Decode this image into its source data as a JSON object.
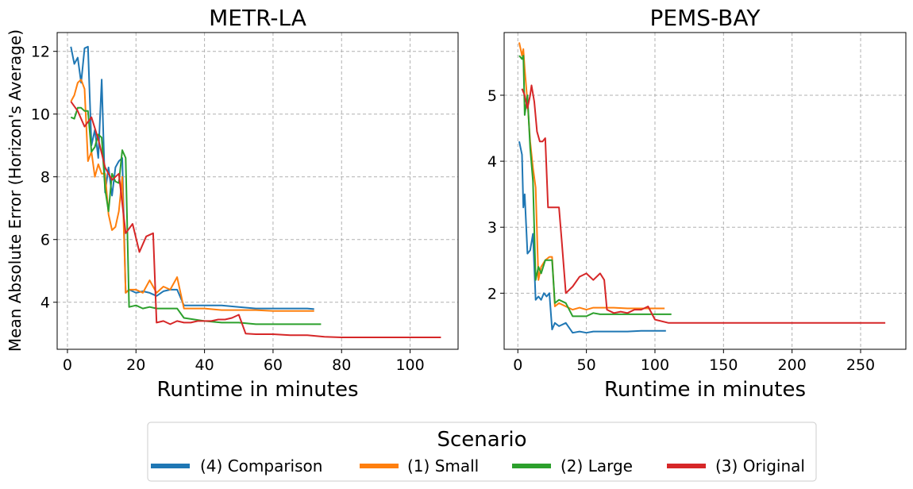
{
  "figure": {
    "ylabel": "Mean Absolute Error (Horizon's Average)"
  },
  "legend": {
    "title": "Scenario",
    "entries": [
      {
        "label": "(4) Comparison",
        "color": "#1f77b4"
      },
      {
        "label": "(1) Small",
        "color": "#ff7f0e"
      },
      {
        "label": "(2) Large",
        "color": "#2ca02c"
      },
      {
        "label": "(3) Original",
        "color": "#d62728"
      }
    ],
    "placement": "bottom-center"
  },
  "chart_data": [
    {
      "type": "line",
      "title": "METR-LA",
      "xlabel": "Runtime in minutes",
      "ylabel": "Mean Absolute Error (Horizon's Average)",
      "xlim": [
        -3,
        114
      ],
      "ylim": [
        2.5,
        12.6
      ],
      "xticks": [
        0,
        20,
        40,
        60,
        80,
        100
      ],
      "yticks": [
        4,
        6,
        8,
        10,
        12
      ],
      "grid": true,
      "series": [
        {
          "name": "(4) Comparison",
          "color": "#1f77b4",
          "x": [
            1,
            2,
            3,
            4,
            5,
            6,
            7,
            8,
            9,
            10,
            11,
            12,
            13,
            14,
            15,
            16,
            17,
            18,
            20,
            22,
            24,
            26,
            28,
            30,
            32,
            34,
            40,
            45,
            50,
            55,
            60,
            65,
            70,
            72
          ],
          "y": [
            12.15,
            11.6,
            11.8,
            11.0,
            12.1,
            12.15,
            9.0,
            9.5,
            8.6,
            11.1,
            7.5,
            8.3,
            7.4,
            8.3,
            8.5,
            8.6,
            4.3,
            4.4,
            4.3,
            4.35,
            4.3,
            4.2,
            4.35,
            4.4,
            4.4,
            3.9,
            3.9,
            3.9,
            3.85,
            3.8,
            3.8,
            3.8,
            3.8,
            3.78
          ]
        },
        {
          "name": "(1) Small",
          "color": "#ff7f0e",
          "x": [
            1,
            2,
            3,
            4,
            5,
            6,
            7,
            8,
            9,
            10,
            11,
            12,
            13,
            14,
            15,
            16,
            17,
            18,
            20,
            22,
            24,
            26,
            28,
            30,
            32,
            34,
            40,
            45,
            50,
            55,
            60,
            65,
            70,
            72
          ],
          "y": [
            10.4,
            10.6,
            11.0,
            11.1,
            10.8,
            8.5,
            8.8,
            8.0,
            8.4,
            8.1,
            8.1,
            6.8,
            6.3,
            6.4,
            6.9,
            8.0,
            4.3,
            4.4,
            4.4,
            4.3,
            4.7,
            4.3,
            4.5,
            4.4,
            4.8,
            3.8,
            3.8,
            3.75,
            3.75,
            3.75,
            3.72,
            3.72,
            3.72,
            3.72
          ]
        },
        {
          "name": "(2) Large",
          "color": "#2ca02c",
          "x": [
            1,
            2,
            3,
            4,
            5,
            6,
            7,
            8,
            9,
            10,
            11,
            12,
            13,
            14,
            15,
            16,
            17,
            18,
            20,
            22,
            24,
            26,
            28,
            30,
            32,
            34,
            40,
            45,
            50,
            55,
            60,
            65,
            70,
            74
          ],
          "y": [
            9.9,
            9.85,
            10.2,
            10.2,
            10.1,
            10.1,
            8.8,
            8.95,
            9.35,
            9.25,
            7.6,
            6.9,
            8.1,
            7.85,
            7.8,
            8.85,
            8.6,
            3.85,
            3.9,
            3.8,
            3.85,
            3.8,
            3.8,
            3.8,
            3.8,
            3.5,
            3.4,
            3.35,
            3.35,
            3.3,
            3.3,
            3.3,
            3.3,
            3.3
          ]
        },
        {
          "name": "(3) Original",
          "color": "#d62728",
          "x": [
            1,
            3,
            5,
            7,
            9,
            11,
            13,
            15,
            17,
            19,
            21,
            23,
            25,
            26,
            28,
            30,
            32,
            34,
            36,
            38,
            40,
            42,
            44,
            46,
            48,
            50,
            52,
            55,
            60,
            65,
            70,
            75,
            80,
            90,
            100,
            109
          ],
          "y": [
            10.4,
            10.1,
            9.6,
            9.9,
            9.2,
            8.3,
            7.9,
            8.1,
            6.2,
            6.5,
            5.6,
            6.1,
            6.2,
            3.35,
            3.4,
            3.3,
            3.4,
            3.35,
            3.35,
            3.4,
            3.4,
            3.4,
            3.45,
            3.45,
            3.5,
            3.6,
            3.0,
            2.98,
            2.98,
            2.95,
            2.95,
            2.9,
            2.88,
            2.88,
            2.88,
            2.88
          ]
        }
      ]
    },
    {
      "type": "line",
      "title": "PEMS-BAY",
      "xlabel": "Runtime in minutes",
      "ylabel": "",
      "xlim": [
        -10,
        283
      ],
      "ylim": [
        1.15,
        5.95
      ],
      "xticks": [
        0,
        50,
        100,
        150,
        200,
        250
      ],
      "yticks": [
        2,
        3,
        4,
        5
      ],
      "grid": true,
      "series": [
        {
          "name": "(4) Comparison",
          "color": "#1f77b4",
          "x": [
            1,
            3,
            4,
            5,
            7,
            9,
            11,
            13,
            15,
            17,
            19,
            21,
            23,
            25,
            27,
            30,
            35,
            40,
            45,
            50,
            55,
            60,
            70,
            80,
            90,
            100,
            108
          ],
          "y": [
            4.3,
            4.1,
            3.3,
            3.5,
            2.6,
            2.65,
            2.9,
            1.9,
            1.95,
            1.9,
            2.0,
            1.95,
            2.0,
            1.45,
            1.55,
            1.5,
            1.55,
            1.4,
            1.42,
            1.4,
            1.42,
            1.42,
            1.42,
            1.42,
            1.43,
            1.43,
            1.43
          ]
        },
        {
          "name": "(1) Small",
          "color": "#ff7f0e",
          "x": [
            1,
            3,
            4,
            5,
            7,
            9,
            11,
            13,
            15,
            17,
            20,
            23,
            25,
            27,
            30,
            35,
            40,
            45,
            50,
            55,
            60,
            70,
            80,
            90,
            100,
            107
          ],
          "y": [
            5.8,
            5.6,
            5.7,
            5.4,
            4.9,
            4.3,
            3.9,
            3.6,
            2.2,
            2.4,
            2.5,
            2.55,
            2.55,
            1.8,
            1.85,
            1.8,
            1.75,
            1.78,
            1.75,
            1.78,
            1.78,
            1.78,
            1.77,
            1.77,
            1.77,
            1.77
          ]
        },
        {
          "name": "(2) Large",
          "color": "#2ca02c",
          "x": [
            1,
            3,
            4,
            5,
            7,
            9,
            11,
            13,
            15,
            17,
            20,
            23,
            25,
            27,
            30,
            35,
            40,
            45,
            50,
            55,
            60,
            70,
            80,
            90,
            100,
            112
          ],
          "y": [
            5.6,
            5.55,
            5.6,
            4.7,
            5.0,
            4.2,
            3.7,
            2.2,
            2.4,
            2.3,
            2.5,
            2.5,
            2.5,
            1.85,
            1.9,
            1.85,
            1.65,
            1.65,
            1.65,
            1.7,
            1.68,
            1.68,
            1.68,
            1.68,
            1.68,
            1.68
          ]
        },
        {
          "name": "(3) Original",
          "color": "#d62728",
          "x": [
            3,
            5,
            7,
            9,
            10,
            12,
            14,
            16,
            18,
            20,
            22,
            25,
            28,
            30,
            32,
            35,
            40,
            45,
            50,
            55,
            60,
            63,
            65,
            70,
            75,
            80,
            85,
            90,
            95,
            100,
            110,
            120,
            150,
            200,
            250,
            268
          ],
          "y": [
            5.1,
            5.0,
            4.8,
            5.0,
            5.15,
            4.9,
            4.45,
            4.3,
            4.3,
            4.35,
            3.3,
            3.3,
            3.3,
            3.3,
            2.8,
            2.0,
            2.1,
            2.25,
            2.3,
            2.2,
            2.3,
            2.2,
            1.75,
            1.7,
            1.72,
            1.7,
            1.75,
            1.75,
            1.8,
            1.6,
            1.55,
            1.55,
            1.55,
            1.55,
            1.55,
            1.55
          ]
        }
      ]
    }
  ]
}
